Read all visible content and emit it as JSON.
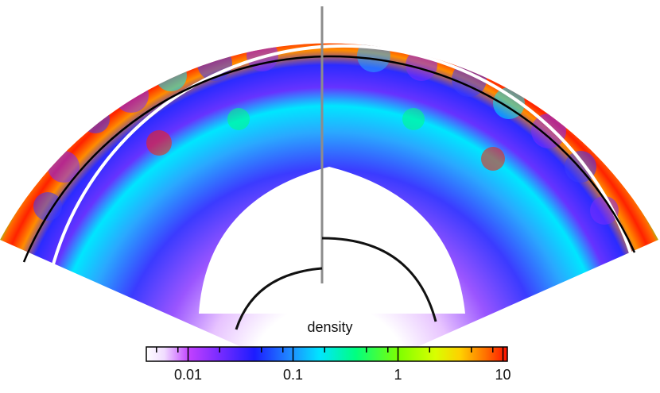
{
  "colorbar": {
    "title": "density",
    "tick_labels": [
      "0.01",
      "0.1",
      "1",
      "10"
    ],
    "tick_values": [
      0.01,
      0.1,
      1,
      10
    ],
    "range": [
      0.004,
      11
    ],
    "scale": "log",
    "colormap": [
      "#ffffff",
      "#c040ff",
      "#7a2cff",
      "#1c1cff",
      "#1f8cff",
      "#00e5ff",
      "#00ff80",
      "#7fff00",
      "#d8ff00",
      "#ffd000",
      "#ff7000",
      "#ff1000"
    ]
  },
  "colors": {
    "outer_medium": "#7ddc1f",
    "shock_line": "#000000",
    "reference_arc": "#ffffff",
    "divider": "#8c8c8c",
    "inner_curve": "#111111"
  }
}
